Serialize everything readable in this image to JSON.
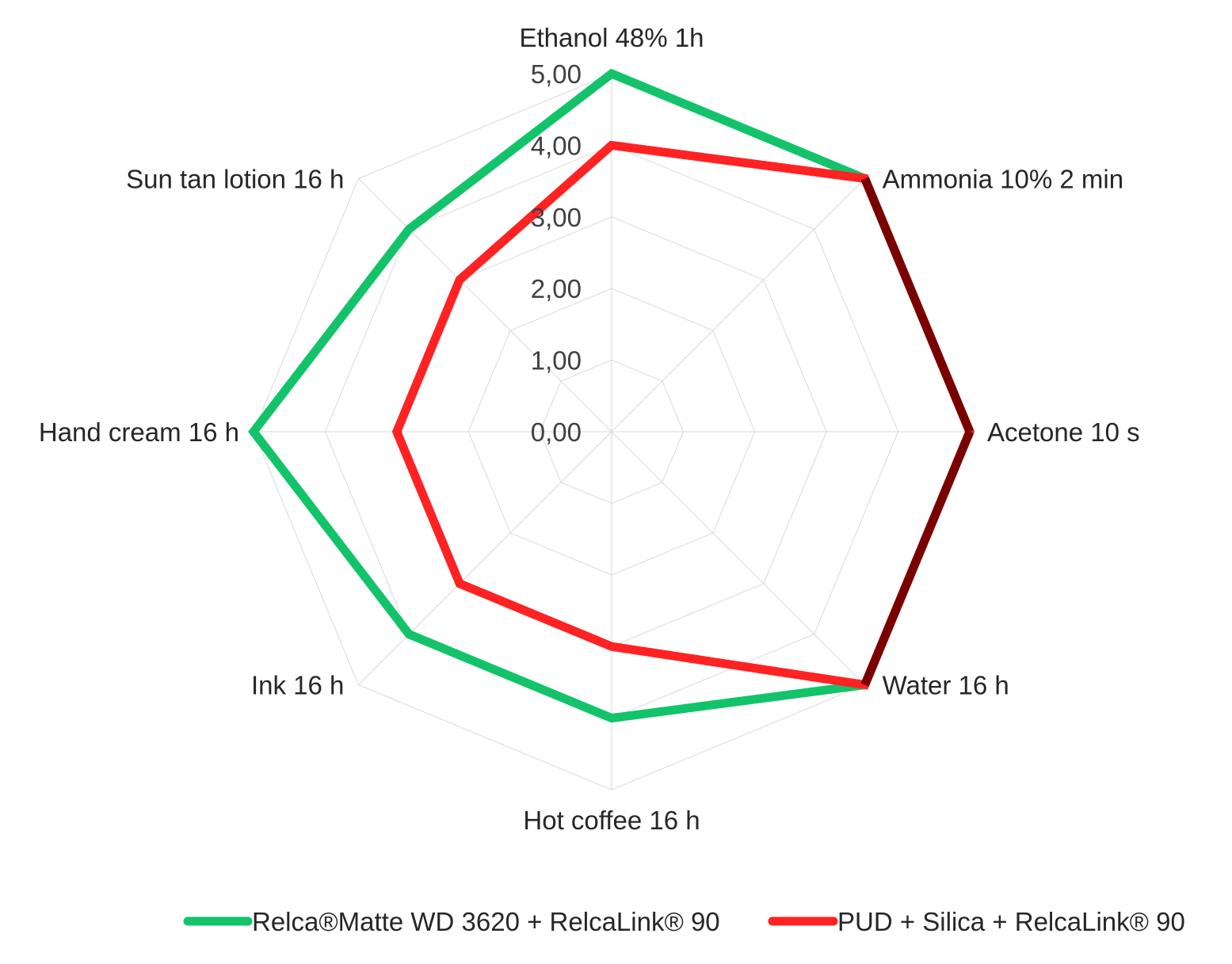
{
  "chart_data": {
    "type": "radar",
    "categories": [
      "Ethanol 48% 1h",
      "Ammonia 10% 2 min",
      "Acetone 10 s",
      "Water 16 h",
      "Hot coffee 16 h",
      "Ink 16 h",
      "Hand cream 16 h",
      "Sun tan lotion 16 h"
    ],
    "series": [
      {
        "name": "Relca®Matte WD 3620 + RelcaLink® 90",
        "color": "#12c36a",
        "values": [
          5,
          5,
          5,
          5,
          4,
          4,
          5,
          4
        ]
      },
      {
        "name": "PUD + Silica + RelcaLink® 90",
        "color": "#ff2222",
        "values": [
          4,
          5,
          5,
          5,
          3,
          3,
          3,
          3
        ]
      }
    ],
    "overlap_color": "#7a0000",
    "rlim": [
      0,
      5
    ],
    "ticks": [
      0,
      1,
      2,
      3,
      4,
      5
    ],
    "tick_labels": [
      "0,00",
      "1,00",
      "2,00",
      "3,00",
      "4,00",
      "5,00"
    ],
    "title": "",
    "legend_position": "bottom",
    "grid": true
  }
}
